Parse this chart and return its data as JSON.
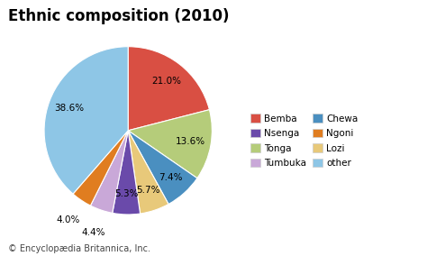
{
  "title": "Ethnic composition (2010)",
  "footnote": "© Encyclopædia Britannica, Inc.",
  "slices": [
    {
      "label": "Bemba",
      "value": 21.0,
      "color": "#d94f43"
    },
    {
      "label": "Tonga",
      "value": 13.6,
      "color": "#b5cc7a"
    },
    {
      "label": "Chewa",
      "value": 7.4,
      "color": "#4a8fc0"
    },
    {
      "label": "Lozi",
      "value": 5.7,
      "color": "#e8c97a"
    },
    {
      "label": "Nsenga",
      "value": 5.3,
      "color": "#6a4aaa"
    },
    {
      "label": "Tumbuka",
      "value": 4.4,
      "color": "#c9a8d8"
    },
    {
      "label": "Ngoni",
      "value": 4.0,
      "color": "#e07d20"
    },
    {
      "label": "other",
      "value": 38.6,
      "color": "#8ec6e6"
    }
  ],
  "legend_order": [
    "Bemba",
    "Nsenga",
    "Tonga",
    "Tumbuka",
    "Chewa",
    "Ngoni",
    "Lozi",
    "other"
  ],
  "title_fontsize": 12,
  "footnote_fontsize": 7,
  "background_color": "#ffffff",
  "startangle": 90
}
